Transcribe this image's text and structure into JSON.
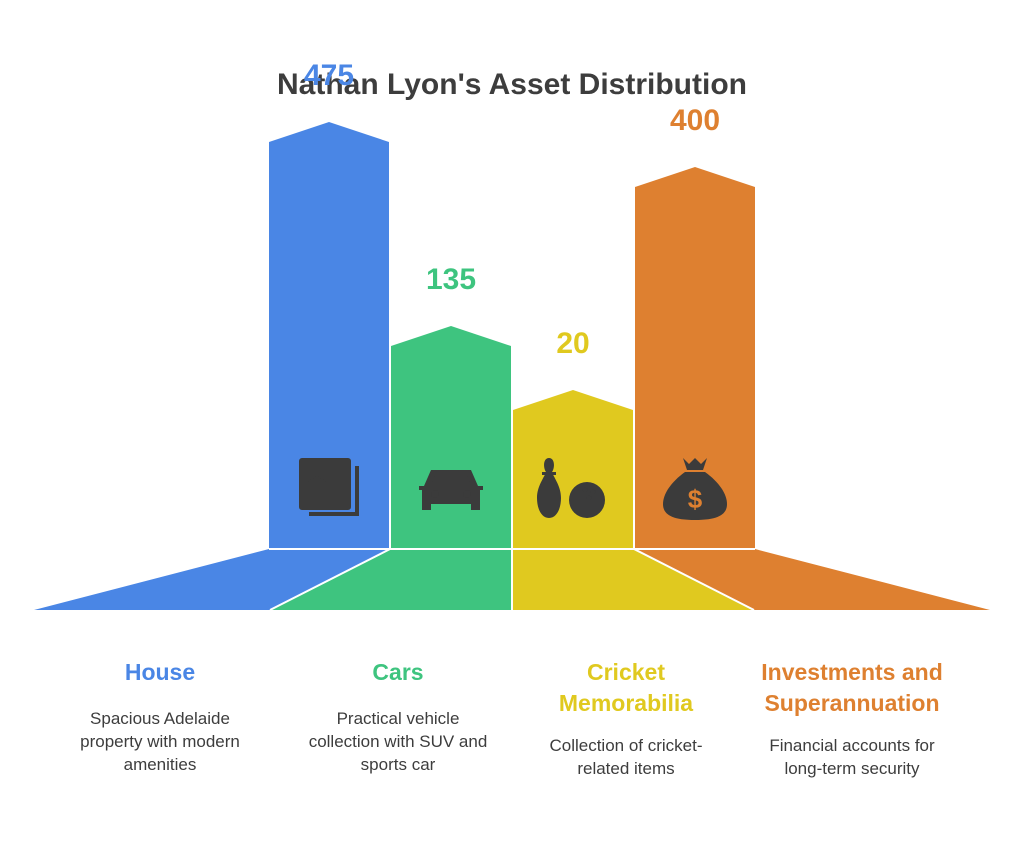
{
  "chart_data": {
    "type": "bar",
    "title": "Nathan Lyon's Asset Distribution",
    "categories": [
      "House",
      "Cars",
      "Cricket Memorabilia",
      "Investments and Superannuation"
    ],
    "values": [
      475,
      135,
      20,
      400
    ],
    "descriptions": [
      "Spacious Adelaide property with modern amenities",
      "Practical vehicle collection with SUV and sports car",
      "Collection of cricket-related items",
      "Financial accounts for long-term security"
    ],
    "colors": [
      "#4a86e5",
      "#3ec47f",
      "#e0c91f",
      "#de8030"
    ],
    "icons": [
      "buildings-icon",
      "car-icon",
      "bowling-icon",
      "money-bag-icon"
    ]
  }
}
